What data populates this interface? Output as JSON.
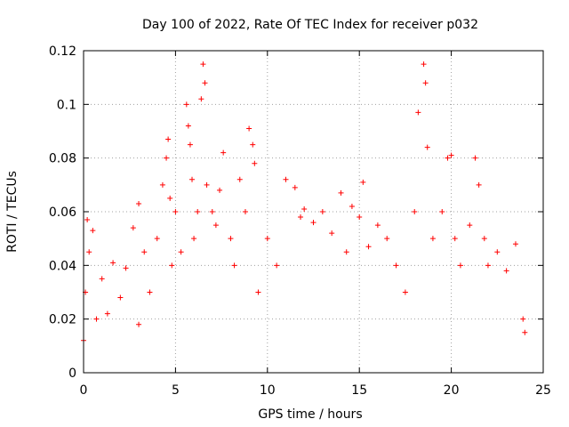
{
  "chart_data": {
    "type": "scatter",
    "title": "Day 100 of 2022, Rate Of TEC Index for receiver p032",
    "xlabel": "GPS time / hours",
    "ylabel": "ROTI / TECUs",
    "xlim": [
      0,
      25
    ],
    "ylim": [
      0,
      0.12
    ],
    "xticks": [
      0,
      5,
      10,
      15,
      20,
      25
    ],
    "xtick_labels": [
      "0",
      "5",
      "10",
      "15",
      "20",
      "25"
    ],
    "yticks": [
      0,
      0.02,
      0.04,
      0.06,
      0.08,
      0.1,
      0.12
    ],
    "ytick_labels": [
      "0",
      "0.02",
      "0.04",
      "0.06",
      "0.08",
      "0.1",
      "0.12"
    ],
    "grid": true,
    "marker": "+",
    "color": "#ff0000",
    "series": [
      {
        "name": "",
        "x": [
          0.0,
          0.1,
          0.2,
          0.3,
          0.5,
          0.7,
          1.0,
          1.3,
          1.6,
          2.0,
          2.3,
          2.7,
          3.0,
          3.0,
          3.3,
          3.6,
          4.0,
          4.3,
          4.5,
          4.6,
          4.7,
          4.8,
          5.0,
          5.3,
          5.6,
          5.7,
          5.8,
          5.9,
          6.0,
          6.2,
          6.4,
          6.5,
          6.6,
          6.7,
          7.0,
          7.2,
          7.4,
          7.6,
          8.0,
          8.2,
          8.5,
          8.8,
          9.0,
          9.2,
          9.3,
          9.5,
          10.0,
          10.5,
          11.0,
          11.5,
          11.8,
          12.0,
          12.5,
          13.0,
          13.5,
          14.0,
          14.3,
          14.6,
          15.0,
          15.2,
          15.5,
          16.0,
          16.5,
          17.0,
          17.5,
          18.0,
          18.2,
          18.5,
          18.6,
          18.7,
          19.0,
          19.5,
          19.8,
          20.0,
          20.2,
          20.5,
          21.0,
          21.3,
          21.5,
          21.8,
          22.0,
          22.5,
          23.0,
          23.5,
          23.9,
          24.0
        ],
        "y": [
          0.012,
          0.03,
          0.057,
          0.045,
          0.053,
          0.02,
          0.035,
          0.022,
          0.041,
          0.028,
          0.039,
          0.054,
          0.063,
          0.018,
          0.045,
          0.03,
          0.05,
          0.07,
          0.08,
          0.087,
          0.065,
          0.04,
          0.06,
          0.045,
          0.1,
          0.092,
          0.085,
          0.072,
          0.05,
          0.06,
          0.102,
          0.115,
          0.108,
          0.07,
          0.06,
          0.055,
          0.068,
          0.082,
          0.05,
          0.04,
          0.072,
          0.06,
          0.091,
          0.085,
          0.078,
          0.03,
          0.05,
          0.04,
          0.072,
          0.069,
          0.058,
          0.061,
          0.056,
          0.06,
          0.052,
          0.067,
          0.045,
          0.062,
          0.058,
          0.071,
          0.047,
          0.055,
          0.05,
          0.04,
          0.03,
          0.06,
          0.097,
          0.115,
          0.108,
          0.084,
          0.05,
          0.06,
          0.08,
          0.081,
          0.05,
          0.04,
          0.055,
          0.08,
          0.07,
          0.05,
          0.04,
          0.045,
          0.038,
          0.048,
          0.02,
          0.015
        ]
      }
    ]
  }
}
